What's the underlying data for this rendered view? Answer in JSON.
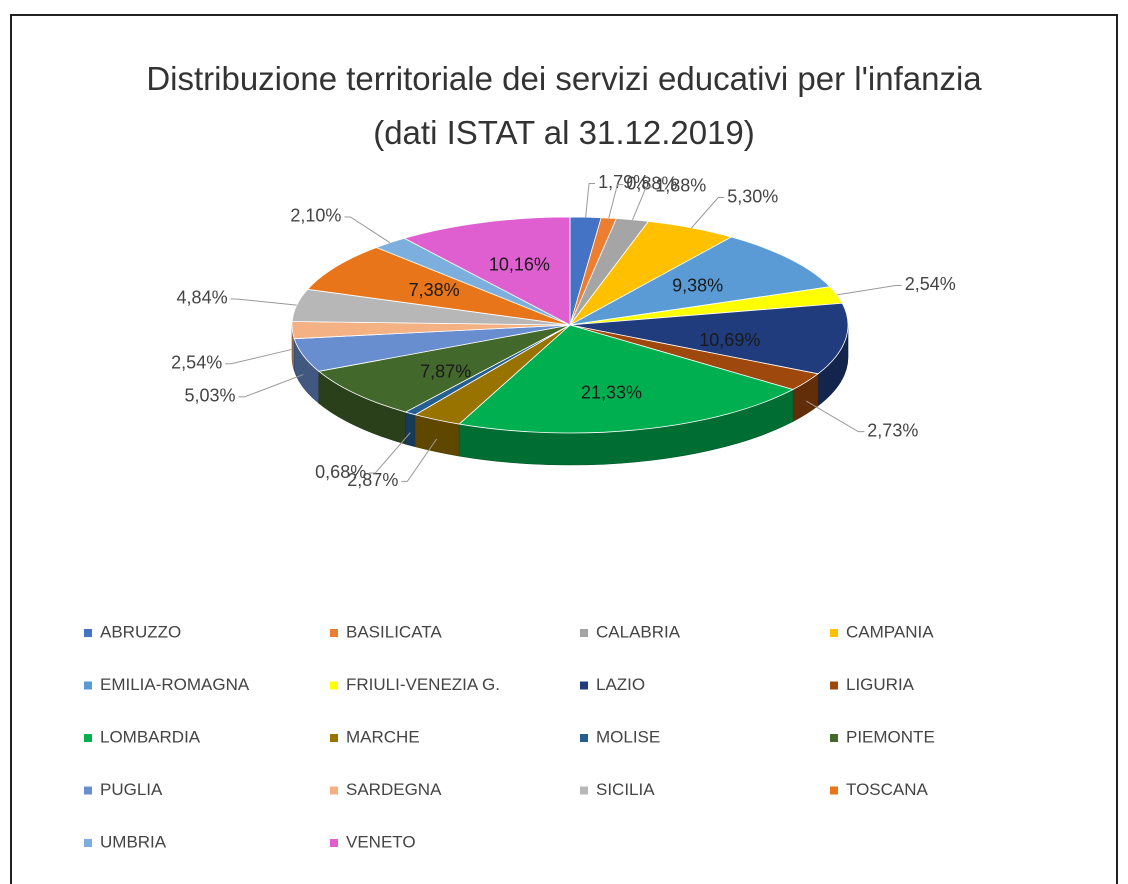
{
  "chart_data": {
    "type": "pie3d",
    "title": "Distribuzione territoriale dei servizi educativi per l'infanzia (dati ISTAT al 31.12.2019)",
    "categories": [
      "ABRUZZO",
      "BASILICATA",
      "CALABRIA",
      "CAMPANIA",
      "EMILIA-ROMAGNA",
      "FRIULI-VENEZIA G.",
      "LAZIO",
      "LIGURIA",
      "LOMBARDIA",
      "MARCHE",
      "MOLISE",
      "PIEMONTE",
      "PUGLIA",
      "SARDEGNA",
      "SICILIA",
      "TOSCANA",
      "UMBRIA",
      "VENETO"
    ],
    "values": [
      1.79,
      0.88,
      1.88,
      5.3,
      9.38,
      2.54,
      10.69,
      2.73,
      21.33,
      2.87,
      0.68,
      7.87,
      5.03,
      2.54,
      4.84,
      7.38,
      2.1,
      10.16
    ],
    "value_labels": [
      "1,79%",
      "0,88%",
      "1,88%",
      "5,30%",
      "9,38%",
      "2,54%",
      "10,69%",
      "2,73%",
      "21,33%",
      "2,87%",
      "0,68%",
      "7,87%",
      "5,03%",
      "2,54%",
      "4,84%",
      "7,38%",
      "2,10%",
      "10,16%"
    ],
    "colors": [
      "#4472c4",
      "#ed7d31",
      "#a5a5a5",
      "#ffc000",
      "#5b9bd5",
      "#ffff00",
      "#203c7c",
      "#9e480e",
      "#00b050",
      "#997300",
      "#255e91",
      "#43682b",
      "#698ed0",
      "#f4b183",
      "#b7b7b7",
      "#e8751a",
      "#7cafdd",
      "#e05fd0"
    ],
    "legend": "bottom"
  }
}
